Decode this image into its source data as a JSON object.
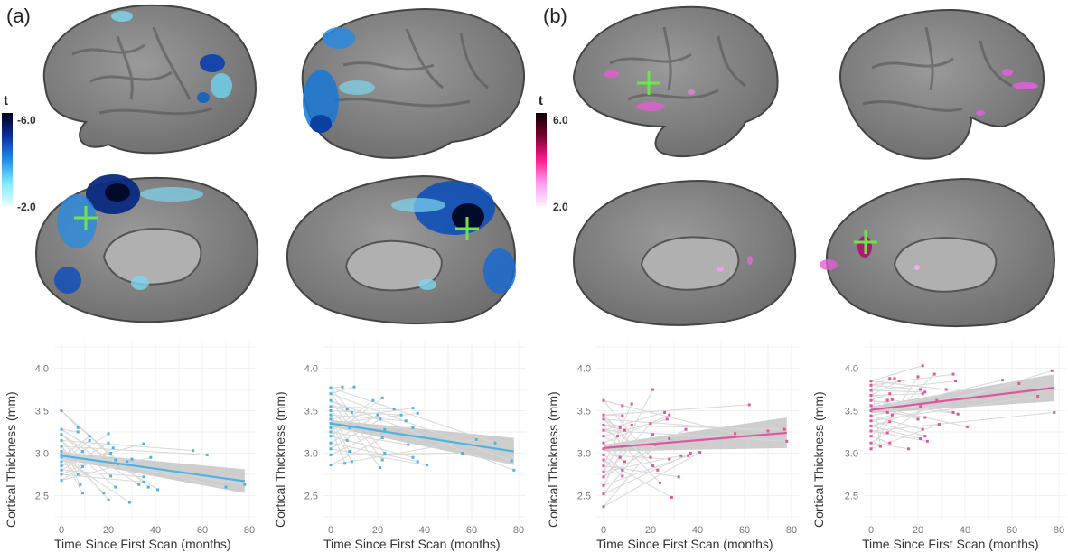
{
  "figure": {
    "panels": [
      {
        "label": "(a)",
        "colorbar": {
          "title": "t",
          "max_label": "-6.0",
          "min_label": "-2.0",
          "colors": [
            "#02021a",
            "#0a2f9e",
            "#1e8fe8",
            "#7fe8ff",
            "#e8fdff"
          ]
        }
      },
      {
        "label": "(b)",
        "colorbar": {
          "title": "t",
          "max_label": "6.0",
          "min_label": "2.0",
          "colors": [
            "#0a0000",
            "#7a0030",
            "#ff1a8c",
            "#ff9cf0",
            "#fff0ff"
          ]
        }
      }
    ],
    "brain_views": [
      {
        "name": "lateral-left-a",
        "overlay": "blue"
      },
      {
        "name": "lateral-right-a",
        "overlay": "blue"
      },
      {
        "name": "medial-left-a",
        "overlay": "blue"
      },
      {
        "name": "medial-right-a",
        "overlay": "blue"
      },
      {
        "name": "lateral-left-b",
        "overlay": "pink"
      },
      {
        "name": "lateral-right-b",
        "overlay": "pink"
      },
      {
        "name": "medial-left-b",
        "overlay": "pink"
      },
      {
        "name": "medial-right-b",
        "overlay": "pink"
      }
    ]
  },
  "axis": {
    "ylabel": "Cortical Thickness (mm)",
    "xlabel": "Time Since First Scan (months)",
    "yticks": [
      "4.0",
      "3.5",
      "3.0",
      "2.5"
    ],
    "xticks": [
      "0",
      "20",
      "40",
      "60",
      "80"
    ]
  },
  "chart_data": [
    {
      "type": "scatter",
      "title": "",
      "panel": "(a) left",
      "xlabel": "Time Since First Scan (months)",
      "ylabel": "Cortical Thickness (mm)",
      "xlim": [
        0,
        80
      ],
      "ylim": [
        2.25,
        4.25
      ],
      "point_color": "#4fb3e0",
      "fit": {
        "x": [
          0,
          78
        ],
        "y": [
          2.97,
          2.67
        ],
        "ci_upper": [
          3.01,
          2.81
        ],
        "ci_lower": [
          2.93,
          2.53
        ]
      },
      "points": [
        [
          0,
          3.5
        ],
        [
          0,
          3.28
        ],
        [
          0,
          3.22
        ],
        [
          0,
          3.15
        ],
        [
          0,
          3.08
        ],
        [
          0,
          3.02
        ],
        [
          0,
          2.98
        ],
        [
          0,
          2.95
        ],
        [
          0,
          2.9
        ],
        [
          0,
          2.85
        ],
        [
          0,
          2.8
        ],
        [
          0,
          2.75
        ],
        [
          0,
          2.68
        ],
        [
          7,
          3.3
        ],
        [
          7,
          3.25
        ],
        [
          9,
          3.02
        ],
        [
          9,
          2.84
        ],
        [
          7,
          2.75
        ],
        [
          8,
          2.63
        ],
        [
          9,
          2.53
        ],
        [
          12,
          3.2
        ],
        [
          12,
          3.15
        ],
        [
          20,
          3.23
        ],
        [
          20,
          3.12
        ],
        [
          21,
          3.0
        ],
        [
          22,
          3.06
        ],
        [
          23,
          2.92
        ],
        [
          24,
          2.87
        ],
        [
          21,
          2.73
        ],
        [
          23,
          2.6
        ],
        [
          20,
          2.45
        ],
        [
          18,
          2.53
        ],
        [
          28,
          2.9
        ],
        [
          29,
          2.42
        ],
        [
          30,
          2.93
        ],
        [
          35,
          3.11
        ],
        [
          35,
          2.72
        ],
        [
          35,
          2.66
        ],
        [
          38,
          2.95
        ],
        [
          37,
          2.6
        ],
        [
          41,
          2.57
        ],
        [
          33,
          2.63
        ],
        [
          56,
          3.03
        ],
        [
          62,
          2.98
        ],
        [
          70,
          2.6
        ],
        [
          78,
          2.63
        ]
      ]
    },
    {
      "type": "scatter",
      "title": "",
      "panel": "(a) right",
      "xlabel": "Time Since First Scan (months)",
      "ylabel": "Cortical Thickness (mm)",
      "xlim": [
        0,
        80
      ],
      "ylim": [
        2.25,
        4.25
      ],
      "point_color": "#4fb3e0",
      "fit": {
        "x": [
          0,
          78
        ],
        "y": [
          3.35,
          3.02
        ],
        "ci_upper": [
          3.39,
          3.18
        ],
        "ci_lower": [
          3.31,
          2.86
        ]
      },
      "points": [
        [
          0,
          3.77
        ],
        [
          0,
          3.7
        ],
        [
          0,
          3.62
        ],
        [
          0,
          3.55
        ],
        [
          0,
          3.5
        ],
        [
          0,
          3.45
        ],
        [
          0,
          3.4
        ],
        [
          0,
          3.35
        ],
        [
          0,
          3.3
        ],
        [
          0,
          3.25
        ],
        [
          0,
          3.2
        ],
        [
          0,
          3.12
        ],
        [
          0,
          3.05
        ],
        [
          0,
          2.98
        ],
        [
          0,
          2.86
        ],
        [
          5,
          3.78
        ],
        [
          10,
          3.78
        ],
        [
          7,
          3.52
        ],
        [
          9,
          3.48
        ],
        [
          8,
          3.3
        ],
        [
          7,
          3.15
        ],
        [
          8,
          3.02
        ],
        [
          9,
          2.9
        ],
        [
          6,
          2.88
        ],
        [
          18,
          3.62
        ],
        [
          22,
          3.65
        ],
        [
          20,
          3.45
        ],
        [
          21,
          3.4
        ],
        [
          23,
          3.28
        ],
        [
          22,
          3.18
        ],
        [
          23,
          3.0
        ],
        [
          22,
          2.92
        ],
        [
          21,
          2.83
        ],
        [
          27,
          3.52
        ],
        [
          30,
          3.45
        ],
        [
          32,
          3.38
        ],
        [
          35,
          3.53
        ],
        [
          37,
          3.47
        ],
        [
          35,
          3.3
        ],
        [
          33,
          3.1
        ],
        [
          35,
          2.95
        ],
        [
          37,
          2.9
        ],
        [
          41,
          2.86
        ],
        [
          56,
          3.0
        ],
        [
          62,
          3.16
        ],
        [
          70,
          3.12
        ],
        [
          77,
          2.91
        ],
        [
          78,
          2.8
        ]
      ]
    },
    {
      "type": "scatter",
      "title": "",
      "panel": "(b) left",
      "xlabel": "Time Since First Scan (months)",
      "ylabel": "Cortical Thickness (mm)",
      "xlim": [
        0,
        80
      ],
      "ylim": [
        2.25,
        4.25
      ],
      "point_color": "#e0559f",
      "fit": {
        "x": [
          0,
          78
        ],
        "y": [
          3.06,
          3.24
        ],
        "ci_upper": [
          3.1,
          3.42
        ],
        "ci_lower": [
          3.02,
          3.06
        ]
      },
      "points": [
        [
          0,
          3.62
        ],
        [
          0,
          3.45
        ],
        [
          0,
          3.4
        ],
        [
          0,
          3.33
        ],
        [
          0,
          3.27
        ],
        [
          0,
          3.2
        ],
        [
          0,
          3.12
        ],
        [
          0,
          3.05
        ],
        [
          0,
          2.98
        ],
        [
          0,
          2.92
        ],
        [
          0,
          2.85
        ],
        [
          0,
          2.78
        ],
        [
          0,
          2.72
        ],
        [
          0,
          2.62
        ],
        [
          0,
          2.52
        ],
        [
          0,
          2.37
        ],
        [
          8,
          3.56
        ],
        [
          8,
          3.44
        ],
        [
          7,
          3.3
        ],
        [
          9,
          3.27
        ],
        [
          6,
          3.2
        ],
        [
          8,
          3.08
        ],
        [
          7,
          2.95
        ],
        [
          9,
          2.9
        ],
        [
          8,
          2.8
        ],
        [
          8,
          2.73
        ],
        [
          12,
          3.58
        ],
        [
          12,
          3.33
        ],
        [
          20,
          3.35
        ],
        [
          21,
          3.75
        ],
        [
          21,
          3.22
        ],
        [
          22,
          3.1
        ],
        [
          20,
          2.95
        ],
        [
          21,
          2.85
        ],
        [
          23,
          2.8
        ],
        [
          24,
          2.65
        ],
        [
          26,
          3.48
        ],
        [
          27,
          3.4
        ],
        [
          28,
          3.45
        ],
        [
          28,
          3.17
        ],
        [
          28,
          2.93
        ],
        [
          29,
          2.48
        ],
        [
          32,
          2.72
        ],
        [
          33,
          2.97
        ],
        [
          35,
          3.28
        ],
        [
          36,
          2.97
        ],
        [
          37,
          3.0
        ],
        [
          41,
          3.01
        ],
        [
          56,
          3.23
        ],
        [
          62,
          3.57
        ],
        [
          70,
          3.26
        ],
        [
          77,
          3.28
        ],
        [
          78,
          3.14
        ]
      ]
    },
    {
      "type": "scatter",
      "title": "",
      "panel": "(b) right",
      "xlabel": "Time Since First Scan (months)",
      "ylabel": "Cortical Thickness (mm)",
      "xlim": [
        0,
        80
      ],
      "ylim": [
        2.25,
        4.25
      ],
      "point_color": "#e0559f",
      "fit": {
        "x": [
          0,
          78
        ],
        "y": [
          3.51,
          3.77
        ],
        "ci_upper": [
          3.55,
          3.93
        ],
        "ci_lower": [
          3.47,
          3.61
        ]
      },
      "points": [
        [
          0,
          3.85
        ],
        [
          0,
          3.8
        ],
        [
          0,
          3.74
        ],
        [
          0,
          3.68
        ],
        [
          0,
          3.62
        ],
        [
          0,
          3.56
        ],
        [
          0,
          3.5
        ],
        [
          0,
          3.44
        ],
        [
          0,
          3.38
        ],
        [
          0,
          3.32
        ],
        [
          0,
          3.26
        ],
        [
          0,
          3.2
        ],
        [
          0,
          3.12
        ],
        [
          0,
          3.05
        ],
        [
          4,
          3.08
        ],
        [
          8,
          3.88
        ],
        [
          10,
          3.88
        ],
        [
          12,
          3.85
        ],
        [
          8,
          3.7
        ],
        [
          7,
          3.62
        ],
        [
          9,
          3.63
        ],
        [
          7,
          3.48
        ],
        [
          9,
          3.45
        ],
        [
          8,
          3.37
        ],
        [
          7,
          3.24
        ],
        [
          8,
          3.12
        ],
        [
          16,
          3.05
        ],
        [
          20,
          3.9
        ],
        [
          22,
          4.03
        ],
        [
          21,
          3.75
        ],
        [
          23,
          3.72
        ],
        [
          22,
          3.7
        ],
        [
          21,
          3.55
        ],
        [
          20,
          3.4
        ],
        [
          23,
          3.42
        ],
        [
          22,
          3.28
        ],
        [
          23,
          3.2
        ],
        [
          21,
          3.17
        ],
        [
          24,
          3.14
        ],
        [
          27,
          3.93
        ],
        [
          28,
          3.62
        ],
        [
          29,
          3.34
        ],
        [
          32,
          3.75
        ],
        [
          35,
          3.93
        ],
        [
          36,
          3.85
        ],
        [
          35,
          3.48
        ],
        [
          37,
          3.46
        ],
        [
          41,
          3.31
        ],
        [
          56,
          3.86
        ],
        [
          63,
          3.82
        ],
        [
          71,
          3.67
        ],
        [
          77,
          3.97
        ],
        [
          78,
          3.48
        ]
      ]
    }
  ]
}
